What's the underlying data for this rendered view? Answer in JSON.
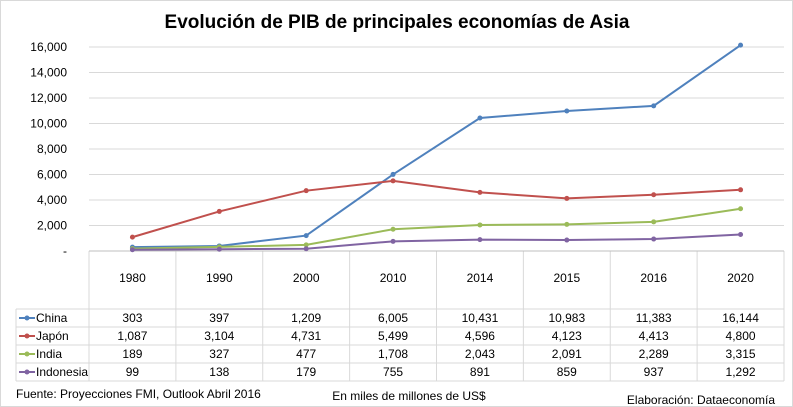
{
  "chart_data": {
    "type": "line",
    "title": "Evolución de PIB de principales economías de Asia",
    "categories": [
      "1980",
      "1990",
      "2000",
      "2010",
      "2014",
      "2015",
      "2016",
      "2020"
    ],
    "ylim": [
      0,
      16000
    ],
    "yticks": [
      "-",
      "2,000",
      "4,000",
      "6,000",
      "8,000",
      "10,000",
      "12,000",
      "14,000",
      "16,000"
    ],
    "grid": true,
    "legend": "data-table",
    "series": [
      {
        "name": "China",
        "color": "#4f81bd",
        "values": [
          303,
          397,
          1209,
          6005,
          10431,
          10983,
          11383,
          16144
        ],
        "labels": [
          "303",
          "397",
          "1,209",
          "6,005",
          "10,431",
          "10,983",
          "11,383",
          "16,144"
        ]
      },
      {
        "name": "Japón",
        "color": "#c0504d",
        "values": [
          1087,
          3104,
          4731,
          5499,
          4596,
          4123,
          4413,
          4800
        ],
        "labels": [
          "1,087",
          "3,104",
          "4,731",
          "5,499",
          "4,596",
          "4,123",
          "4,413",
          "4,800"
        ]
      },
      {
        "name": "India",
        "color": "#9bbb59",
        "values": [
          189,
          327,
          477,
          1708,
          2043,
          2091,
          2289,
          3315
        ],
        "labels": [
          "189",
          "327",
          "477",
          "1,708",
          "2,043",
          "2,091",
          "2,289",
          "3,315"
        ]
      },
      {
        "name": "Indonesia",
        "color": "#8064a2",
        "values": [
          99,
          138,
          179,
          755,
          891,
          859,
          937,
          1292
        ],
        "labels": [
          "99",
          "138",
          "179",
          "755",
          "891",
          "859",
          "937",
          "1,292"
        ]
      }
    ],
    "annotations": {
      "source": "Fuente: Proyecciones FMI, Outlook Abril 2016",
      "units": "En miles de millones de US$",
      "credit": "Elaboración: Dataeconomía"
    }
  }
}
